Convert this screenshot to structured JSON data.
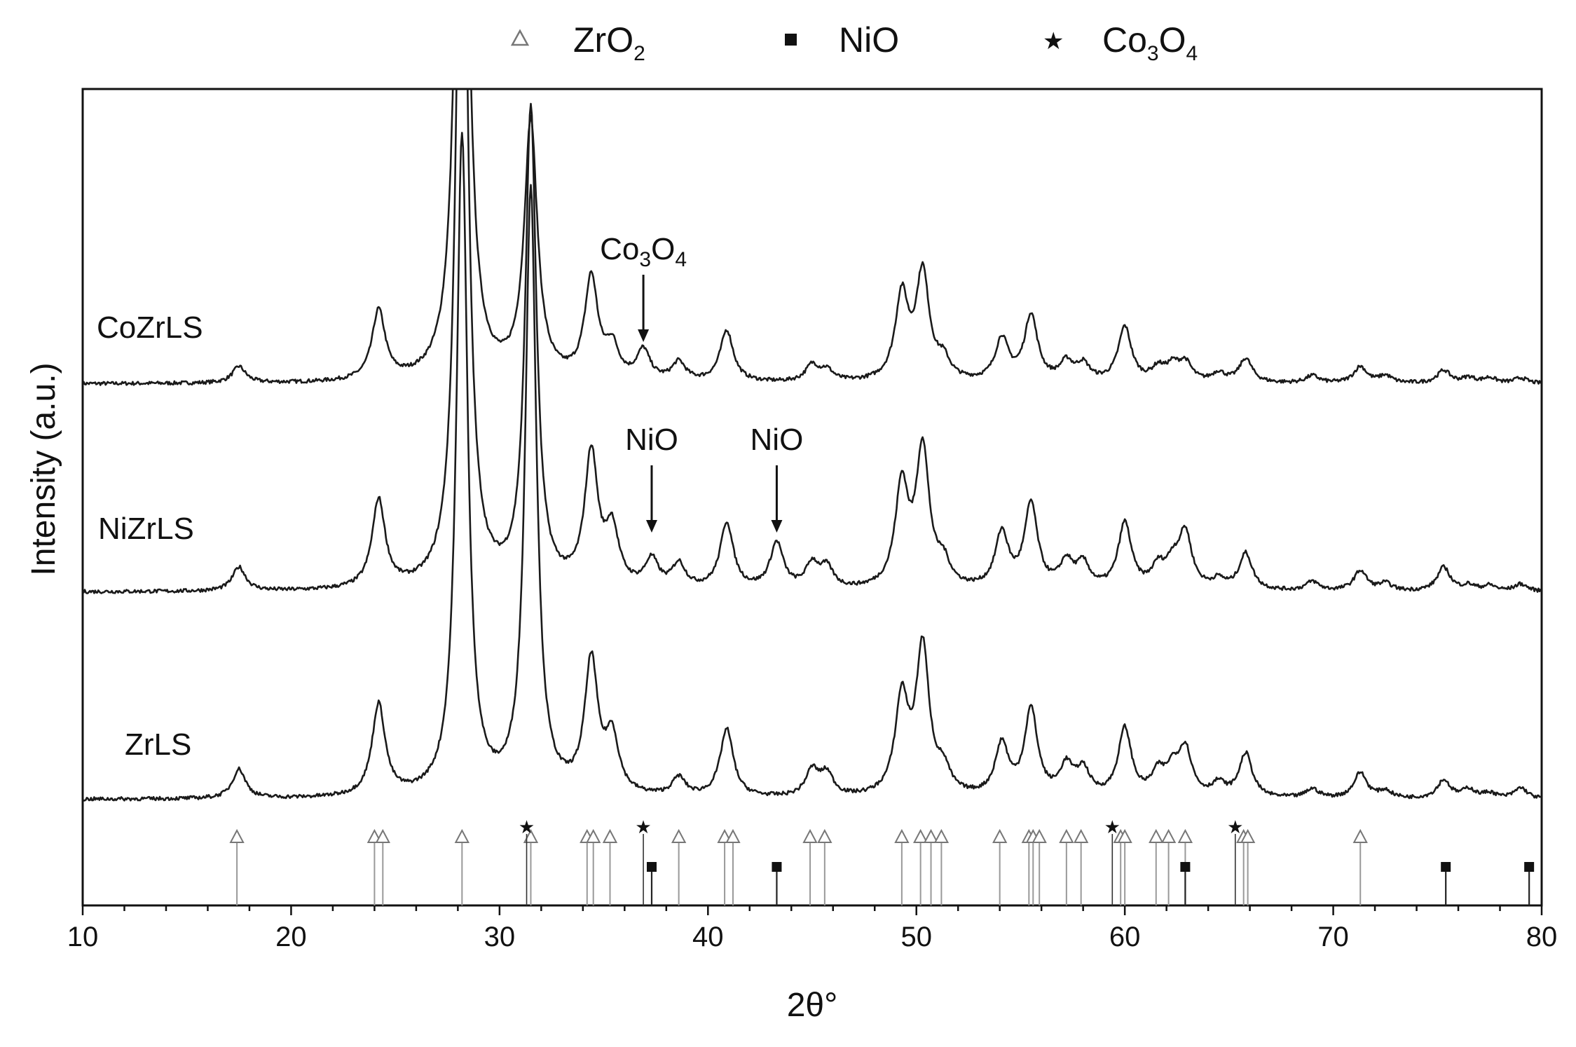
{
  "chart_data": {
    "type": "line",
    "xlabel": "2θ°",
    "ylabel": "Intensity (a.u.)",
    "xlim": [
      10,
      80
    ],
    "xticks": [
      "10",
      "20",
      "30",
      "40",
      "50",
      "60",
      "70",
      "80"
    ],
    "legend": {
      "placement": "top",
      "entries": [
        {
          "marker": "open-triangle",
          "label": "ZrO",
          "sub": "2"
        },
        {
          "marker": "filled-square",
          "label": "NiO",
          "sub": ""
        },
        {
          "marker": "star",
          "label": "Co",
          "sub": "3",
          "label2": "O",
          "sub2": "4"
        }
      ]
    },
    "series": [
      {
        "name": "CoZrLS",
        "baseline": 0.94,
        "peaks": [
          [
            17.5,
            0.09
          ],
          [
            24.2,
            0.38
          ],
          [
            28.2,
            4.6
          ],
          [
            31.5,
            1.4
          ],
          [
            34.4,
            0.55
          ],
          [
            35.4,
            0.17
          ],
          [
            36.9,
            0.16
          ],
          [
            38.6,
            0.1
          ],
          [
            40.9,
            0.28
          ],
          [
            45.0,
            0.09
          ],
          [
            45.7,
            0.06
          ],
          [
            49.3,
            0.46
          ],
          [
            50.3,
            0.58
          ],
          [
            51.3,
            0.1
          ],
          [
            54.1,
            0.23
          ],
          [
            55.5,
            0.36
          ],
          [
            57.2,
            0.1
          ],
          [
            58.0,
            0.09
          ],
          [
            60.0,
            0.3
          ],
          [
            61.6,
            0.07
          ],
          [
            62.3,
            0.08
          ],
          [
            62.9,
            0.1
          ],
          [
            64.5,
            0.05
          ],
          [
            65.8,
            0.13
          ],
          [
            69.0,
            0.04
          ],
          [
            71.3,
            0.09
          ],
          [
            72.5,
            0.04
          ],
          [
            75.3,
            0.07
          ],
          [
            76.5,
            0.03
          ],
          [
            77.5,
            0.03
          ],
          [
            79.0,
            0.03
          ]
        ]
      },
      {
        "name": "NiZrLS",
        "baseline": 0.42,
        "peaks": [
          [
            17.5,
            0.13
          ],
          [
            24.2,
            0.48
          ],
          [
            28.2,
            4.6
          ],
          [
            31.5,
            2.6
          ],
          [
            34.4,
            0.72
          ],
          [
            35.4,
            0.3
          ],
          [
            37.3,
            0.15
          ],
          [
            38.6,
            0.13
          ],
          [
            40.9,
            0.36
          ],
          [
            43.3,
            0.25
          ],
          [
            45.0,
            0.13
          ],
          [
            45.7,
            0.11
          ],
          [
            49.3,
            0.55
          ],
          [
            50.3,
            0.75
          ],
          [
            51.3,
            0.12
          ],
          [
            54.1,
            0.3
          ],
          [
            55.5,
            0.46
          ],
          [
            57.2,
            0.14
          ],
          [
            58.0,
            0.13
          ],
          [
            60.0,
            0.36
          ],
          [
            61.6,
            0.11
          ],
          [
            62.3,
            0.12
          ],
          [
            62.9,
            0.3
          ],
          [
            64.5,
            0.05
          ],
          [
            65.8,
            0.2
          ],
          [
            69.0,
            0.05
          ],
          [
            71.3,
            0.11
          ],
          [
            72.5,
            0.04
          ],
          [
            75.3,
            0.13
          ],
          [
            76.5,
            0.03
          ],
          [
            77.5,
            0.03
          ],
          [
            79.0,
            0.04
          ]
        ]
      },
      {
        "name": "ZrLS",
        "baseline": 0.0,
        "peaks": [
          [
            17.5,
            0.16
          ],
          [
            24.2,
            0.5
          ],
          [
            28.2,
            3.6
          ],
          [
            31.5,
            3.3
          ],
          [
            34.4,
            0.72
          ],
          [
            35.4,
            0.3
          ],
          [
            38.6,
            0.1
          ],
          [
            40.9,
            0.37
          ],
          [
            45.0,
            0.14
          ],
          [
            45.7,
            0.12
          ],
          [
            49.3,
            0.52
          ],
          [
            50.3,
            0.8
          ],
          [
            51.3,
            0.12
          ],
          [
            54.1,
            0.28
          ],
          [
            55.5,
            0.47
          ],
          [
            57.2,
            0.16
          ],
          [
            58.0,
            0.14
          ],
          [
            60.0,
            0.37
          ],
          [
            61.6,
            0.12
          ],
          [
            62.3,
            0.13
          ],
          [
            62.9,
            0.25
          ],
          [
            64.5,
            0.07
          ],
          [
            65.8,
            0.24
          ],
          [
            69.0,
            0.05
          ],
          [
            71.3,
            0.14
          ],
          [
            72.5,
            0.04
          ],
          [
            75.3,
            0.1
          ],
          [
            76.5,
            0.05
          ],
          [
            77.5,
            0.03
          ],
          [
            79.0,
            0.06
          ]
        ]
      }
    ],
    "reference_lines": {
      "ZrO2": [
        17.4,
        24.0,
        24.4,
        28.2,
        31.5,
        34.2,
        34.5,
        35.3,
        38.6,
        40.8,
        41.2,
        44.9,
        45.6,
        49.3,
        50.2,
        50.7,
        51.2,
        54.0,
        55.4,
        55.6,
        55.9,
        57.2,
        57.9,
        59.8,
        60.0,
        61.5,
        62.1,
        62.9,
        65.7,
        65.9,
        71.3
      ],
      "NiO": [
        37.3,
        43.3,
        62.9,
        75.4,
        79.4
      ],
      "Co3O4": [
        31.3,
        36.9,
        59.4,
        65.3
      ]
    },
    "annotations": [
      {
        "text": "Co",
        "sub": "3",
        "text2": "O",
        "sub2": "4",
        "x": 36.9,
        "series": "CoZrLS"
      },
      {
        "text": "NiO",
        "x": 37.3,
        "series": "NiZrLS"
      },
      {
        "text": "NiO",
        "x": 43.3,
        "series": "NiZrLS"
      }
    ]
  }
}
